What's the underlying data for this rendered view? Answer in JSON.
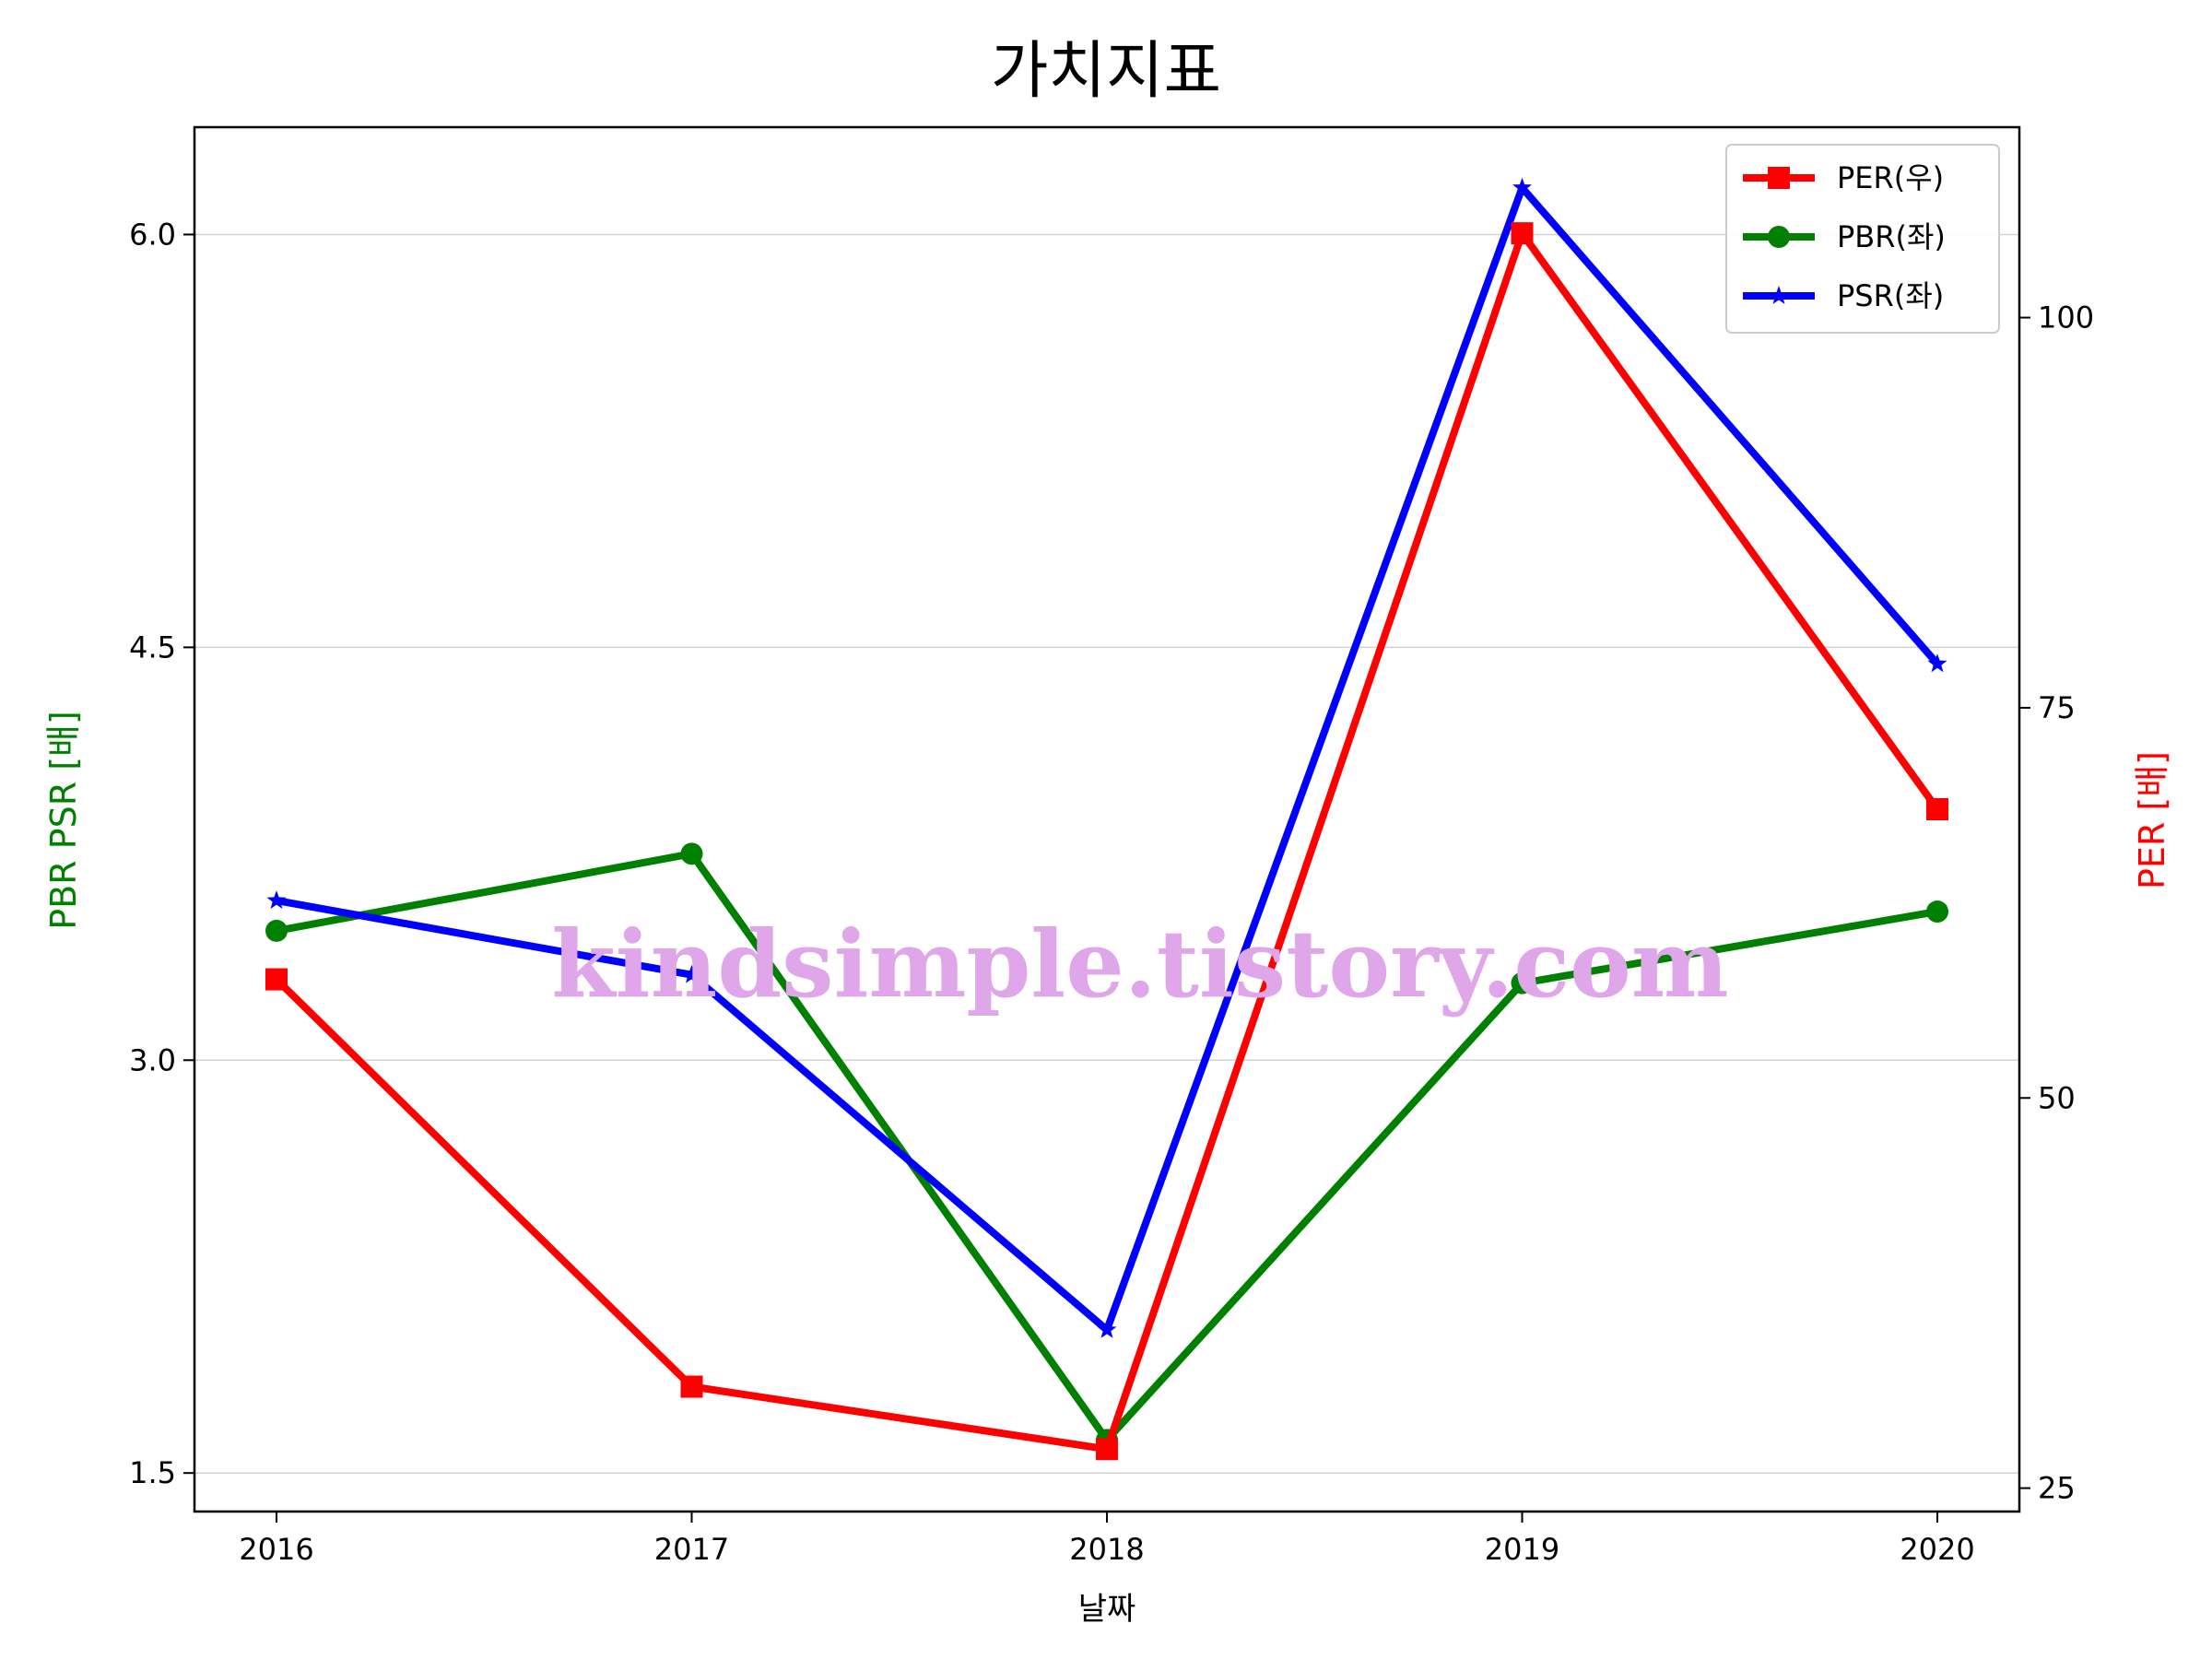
{
  "chart_data": {
    "type": "line",
    "title": "가치지표",
    "xlabel": "날짜",
    "ylabel_left": "PBR PSR [배]",
    "ylabel_right": "PER [배]",
    "categories": [
      "2016",
      "2017",
      "2018",
      "2019",
      "2020"
    ],
    "y_left": {
      "ticks": [
        "1.5",
        "3.0",
        "4.5",
        "6.0"
      ],
      "range": [
        1.36,
        6.39
      ],
      "grid": true
    },
    "y_right": {
      "ticks": [
        "25",
        "50",
        "75",
        "100"
      ],
      "range": [
        23.5,
        112.2
      ]
    },
    "series": [
      {
        "name": "PER(우)",
        "axis": "right",
        "color": "#ff0000",
        "marker": "square",
        "values": [
          57.6,
          31.5,
          27.5,
          105.4,
          68.5
        ]
      },
      {
        "name": "PBR(좌)",
        "axis": "left",
        "color": "#008000",
        "marker": "circle",
        "values": [
          3.47,
          3.75,
          1.62,
          3.28,
          3.54
        ]
      },
      {
        "name": "PSR(좌)",
        "axis": "left",
        "color": "#0000ff",
        "marker": "star",
        "values": [
          3.58,
          3.31,
          2.02,
          6.17,
          4.44
        ]
      }
    ],
    "legend": "top-right",
    "watermark": "kindsimple.tistory.com"
  }
}
